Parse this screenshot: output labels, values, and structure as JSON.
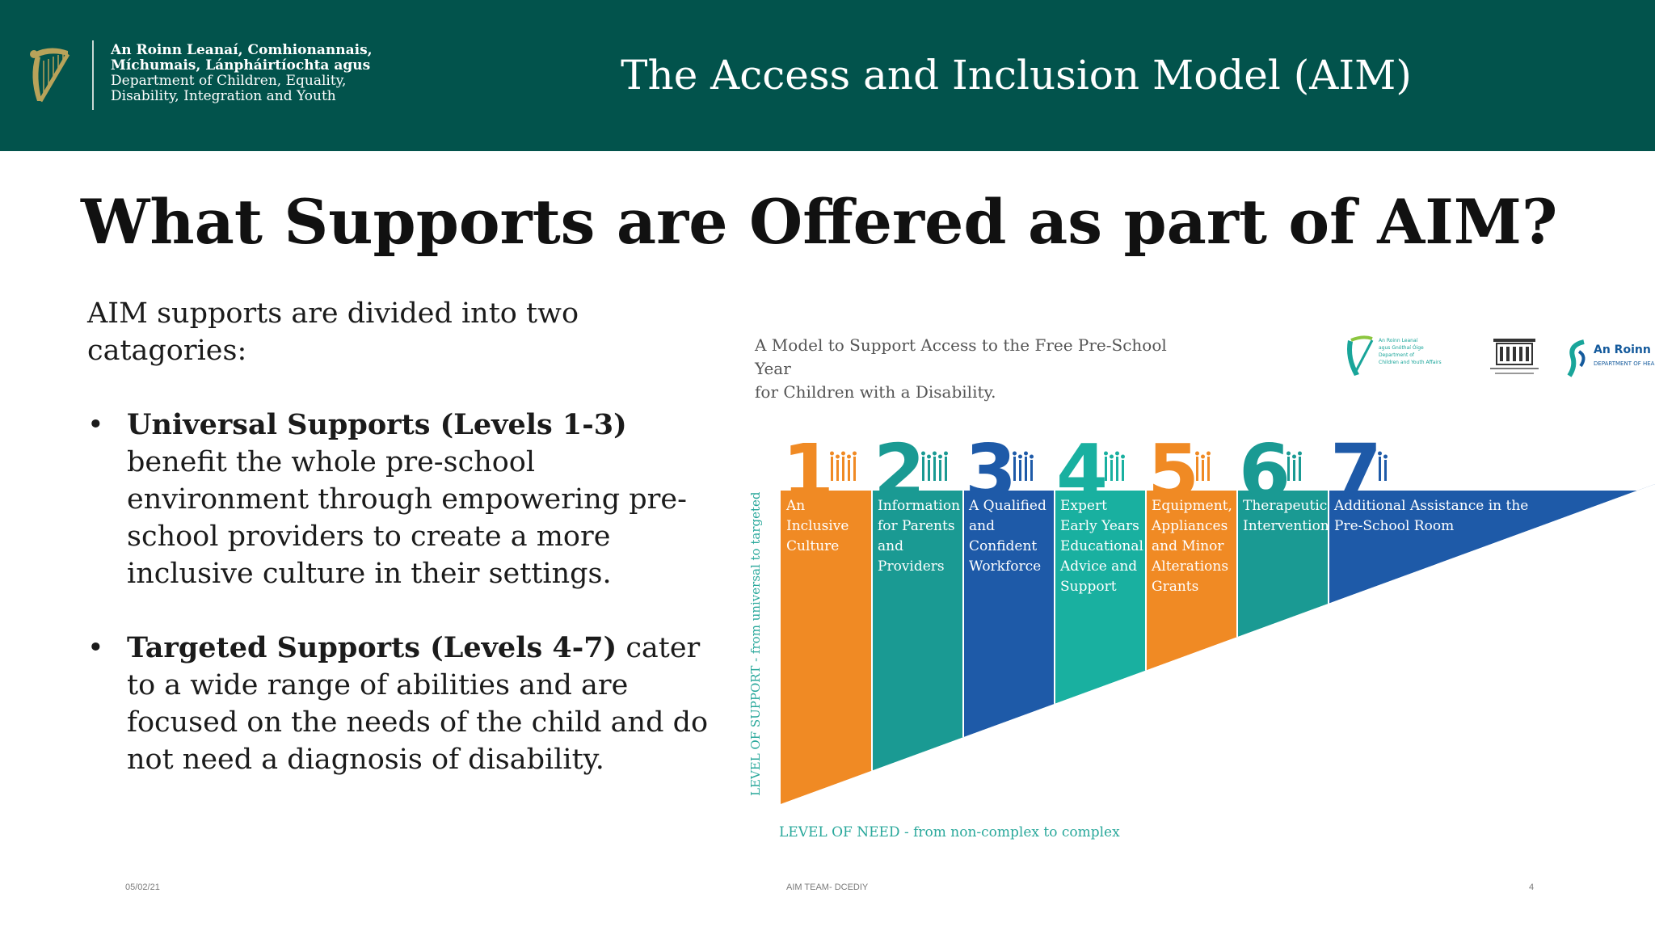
{
  "header": {
    "department_lines": [
      "An Roinn Leanaí, Comhionannais,",
      "Míchumais, Lánpháirtíochta agus",
      "Department of Children, Equality,",
      "Disability, Integration and Youth"
    ],
    "title": "The Access and Inclusion Model (AIM)"
  },
  "slide": {
    "title": "What Supports are Offered as part of AIM?",
    "intro": "AIM supports are divided into two catagories:",
    "bullets": [
      {
        "bold": "Universal Supports (Levels 1-3)",
        "text": " benefit the whole pre-school environment through empowering pre-school providers to create a more inclusive culture in their settings."
      },
      {
        "bold": "Targeted Supports (Levels 4-7)",
        "text": " cater to a wide range of abilities and are focused on the needs of the child and do not need a diagnosis of disability."
      }
    ]
  },
  "figure": {
    "caption_line1": "A Model to Support Access to the Free Pre-School Year",
    "caption_line2": "for Children with a Disability.",
    "logo_a_text": "An Roinn Leanaí\nagus Gnóthaí Óige\nDepartment of\nChildren and Youth Affairs",
    "logo_c_text": "An Roinn Sláinte",
    "logo_c_subtext": "DEPARTMENT OF HEALTH",
    "y_axis_label": "LEVEL OF SUPPORT - from universal to targeted",
    "x_axis_label": "LEVEL OF NEED - from non-complex to complex",
    "levels": [
      {
        "number": "1",
        "lines": [
          "An",
          "Inclusive",
          "Culture"
        ],
        "color": "#f08a24"
      },
      {
        "number": "2",
        "lines": [
          "Information",
          "for Parents",
          "and",
          "Providers"
        ],
        "color": "#1a9a93"
      },
      {
        "number": "3",
        "lines": [
          "A Qualified",
          "and",
          "Confident",
          "Workforce"
        ],
        "color": "#1e5aa8"
      },
      {
        "number": "4",
        "lines": [
          "Expert",
          "Early Years",
          "Educational",
          "Advice and",
          "Support"
        ],
        "color": "#19b0a0"
      },
      {
        "number": "5",
        "lines": [
          "Equipment,",
          "Appliances",
          "and Minor",
          "Alterations",
          "Grants"
        ],
        "color": "#f08a24"
      },
      {
        "number": "6",
        "lines": [
          "Therapeutic",
          "Intervention"
        ],
        "color": "#1a9a93"
      },
      {
        "number": "7",
        "lines": [
          "Additional Assistance in the",
          "Pre-School Room"
        ],
        "color": "#1e5aa8"
      }
    ]
  },
  "footer": {
    "date": "05/02/21",
    "center": "AIM TEAM- DCEDIY",
    "page": "4"
  },
  "colors": {
    "header_bg": "#02534c",
    "orange": "#f08a24",
    "teal": "#1a9a93",
    "blue": "#1e5aa8",
    "light_teal": "#19b0a0"
  }
}
